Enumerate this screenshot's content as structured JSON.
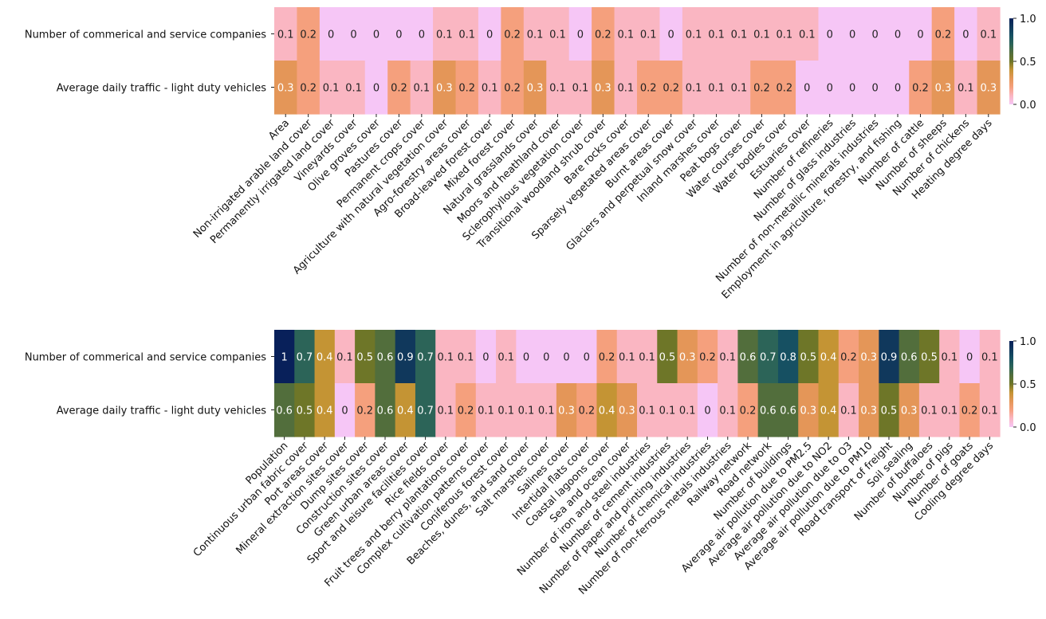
{
  "chart_data": [
    {
      "type": "heatmap",
      "title": "",
      "rows": [
        "Number of commerical and service companies",
        "Average daily traffic - light duty vehicles"
      ],
      "columns": [
        "Area",
        "Non-irrigated arable land cover",
        "Permanently irrigated land cover",
        "Vineyards cover",
        "Olive groves cover",
        "Pastures cover",
        "Permanent crops cover",
        "Agriculture with natural vegetation cover",
        "Agro-forestry areas cover",
        "Broad-leaved forest cover",
        "Mixed forest cover",
        "Natural grasslands cover",
        "Moors and heathland cover",
        "Sclerophyllous vegetation cover",
        "Transitional woodland shrub cover",
        "Bare rocks cover",
        "Sparsely vegetated areas cover",
        "Burnt areas cover",
        "Glaciers and perpetual snow cover",
        "Inland marshes cover",
        "Peat bogs cover",
        "Water courses cover",
        "Water bodies cover",
        "Estuaries cover",
        "Number of refineries",
        "Number of glass industries",
        "Number of non-metallic minerals industries",
        "Employment in agriculture, forestry, and fishing",
        "Number of cattle",
        "Number of sheeps",
        "Number of chickens",
        "Heating degree days"
      ],
      "values": [
        [
          0.1,
          0.2,
          0,
          0,
          0,
          0,
          0,
          0.1,
          0.1,
          0,
          0.2,
          0.1,
          0.1,
          0,
          0.2,
          0.1,
          0.1,
          0,
          0.1,
          0.1,
          0.1,
          0.1,
          0.1,
          0.1,
          0,
          0,
          0,
          0,
          0,
          0.2,
          0,
          0.1
        ],
        [
          0.3,
          0.2,
          0.1,
          0.1,
          0,
          0.2,
          0.1,
          0.3,
          0.2,
          0.1,
          0.2,
          0.3,
          0.1,
          0.1,
          0.3,
          0.1,
          0.2,
          0.2,
          0.1,
          0.1,
          0.1,
          0.2,
          0.2,
          0,
          0,
          0,
          0,
          0,
          0.2,
          0.3,
          0.1,
          0.3
        ]
      ],
      "colorbar": {
        "min": 0.0,
        "max": 1.0,
        "ticks": [
          "0.0",
          "0.5",
          "1.0"
        ]
      }
    },
    {
      "type": "heatmap",
      "title": "",
      "rows": [
        "Number of commerical and service companies",
        "Average daily traffic - light duty vehicles"
      ],
      "columns": [
        "Population",
        "Continuous urban fabric cover",
        "Port areas cover",
        "Mineral extraction sites cover",
        "Dump sites cover",
        "Construction sites cover",
        "Green urban areas cover",
        "Sport and leisure facilities cover",
        "Rice fields cover",
        "Fruit trees and berry plantations cover",
        "Complex cultivation patterns cover",
        "Coniferous forest cover",
        "Beaches, dunes, and sand cover",
        "Salt marshes cover",
        "Salines cover",
        "Intertidal flats cover",
        "Coastal lagoons cover",
        "Sea and ocean cover",
        "Number of iron and steel industries",
        "Number of cement industries",
        "Number of paper and printing industries",
        "Number of chemical industries",
        "Number of non-ferrous metals industries",
        "Railway network",
        "Road network",
        "Number of buildings",
        "Average air pollution due to PM2.5",
        "Average air pollution due to NO2",
        "Average air pollution due to O3",
        "Average air pollution due to PM10",
        "Road transport of freight",
        "Soil sealing",
        "Number of buffaloes",
        "Number of pigs",
        "Number of goats",
        "Cooling degree days"
      ],
      "values": [
        [
          1,
          0.7,
          0.4,
          0.1,
          0.5,
          0.6,
          0.9,
          0.7,
          0.1,
          0.1,
          0,
          0.1,
          0,
          0,
          0,
          0,
          0.2,
          0.1,
          0.1,
          0.5,
          0.3,
          0.2,
          0.1,
          0.6,
          0.7,
          0.8,
          0.5,
          0.4,
          0.2,
          0.3,
          0.9,
          0.6,
          0.5,
          0.1,
          0,
          0.1
        ],
        [
          0.6,
          0.5,
          0.4,
          0,
          0.2,
          0.6,
          0.4,
          0.7,
          0.1,
          0.2,
          0.1,
          0.1,
          0.1,
          0.1,
          0.3,
          0.2,
          0.4,
          0.3,
          0.1,
          0.1,
          0.1,
          0,
          0.1,
          0.2,
          0.6,
          0.6,
          0.3,
          0.4,
          0.1,
          0.3,
          0.5,
          0.3,
          0.1,
          0.1,
          0.2,
          0.1
        ]
      ],
      "colorbar": {
        "min": 0.0,
        "max": 1.0,
        "ticks": [
          "0.0",
          "0.5",
          "1.0"
        ]
      }
    }
  ]
}
